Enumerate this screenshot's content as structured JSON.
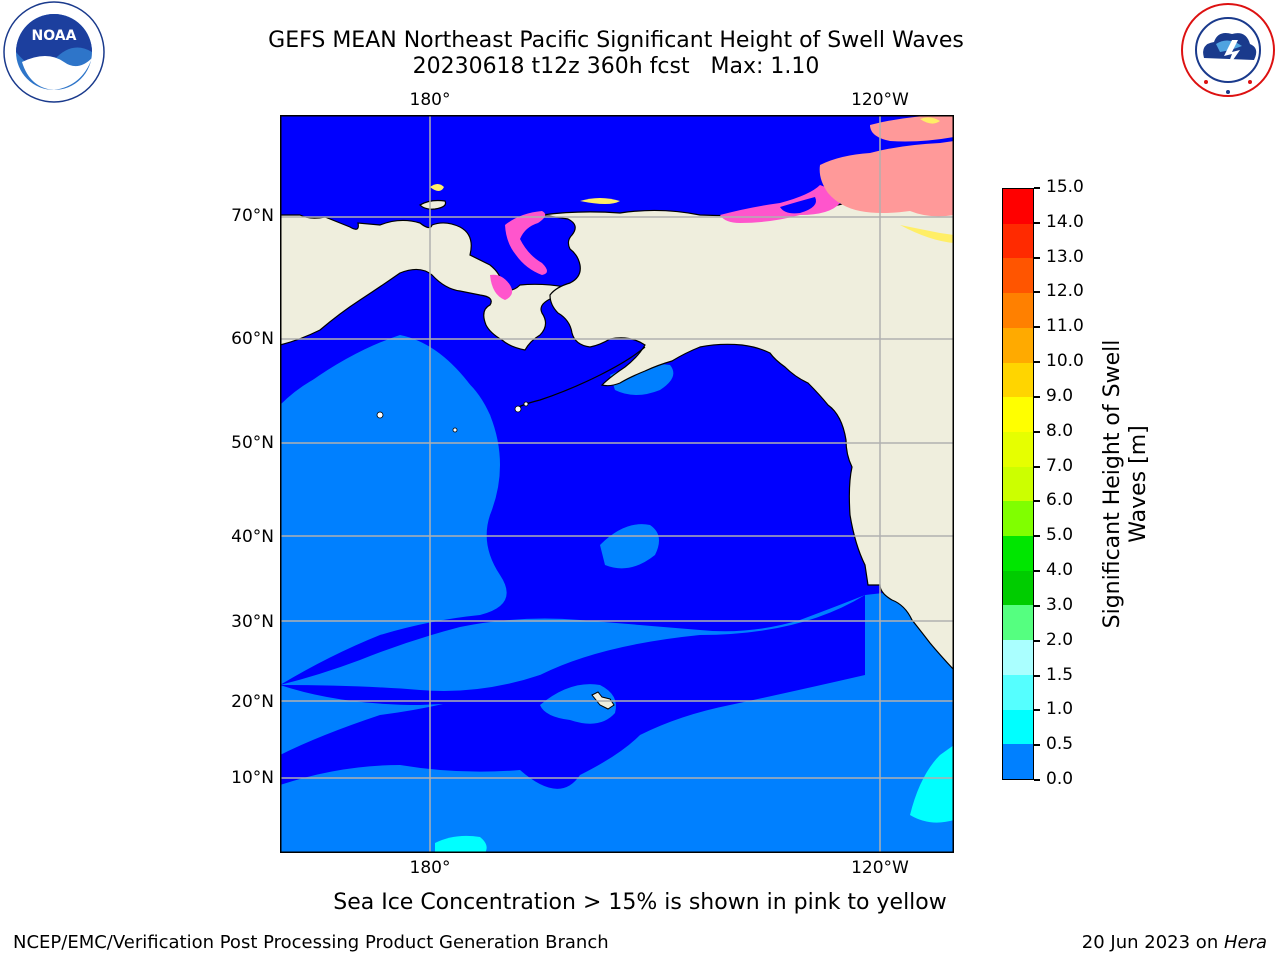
{
  "title": {
    "line1": "GEFS MEAN Northeast Pacific Significant Height of Swell Waves",
    "line2": "20230618 t12z 360h fcst   Max: 1.10"
  },
  "logos": {
    "noaa_text": "NOAA",
    "noaa_ring": "NATIONAL OCEANIC AND ATMOSPHERIC ADMINISTRATION · U.S. DEPARTMENT OF COMMERCE",
    "nws_ring": "NATIONAL WEATHER SERVICE"
  },
  "map": {
    "lon_labels_top": [
      "180°",
      "120°W"
    ],
    "lon_labels_bottom": [
      "180°",
      "120°W"
    ],
    "lat_labels": [
      "70°N",
      "60°N",
      "50°N",
      "40°N",
      "30°N",
      "20°N",
      "10°N"
    ],
    "colors": {
      "land": "#efeedd",
      "swell_0_05": "#0000ff",
      "swell_05_10": "#0080ff",
      "swell_10_15": "#00ffff",
      "ice_pink": "#ff55cc",
      "ice_salmon": "#ff9999",
      "ice_yellow": "#ffee66",
      "grid": "#b0b0b0"
    }
  },
  "colorbar": {
    "label_line1": "Significant Height of Swell",
    "label_line2": "Waves [m]",
    "ticks": [
      "15.0",
      "14.0",
      "13.0",
      "12.0",
      "11.0",
      "10.0",
      "9.0",
      "8.0",
      "7.0",
      "6.0",
      "5.0",
      "4.0",
      "3.0",
      "2.0",
      "1.5",
      "1.0",
      "0.5",
      "0.0"
    ],
    "colors": [
      "#ff0000",
      "#ff2a00",
      "#ff5500",
      "#ff8000",
      "#ffaa00",
      "#ffd500",
      "#ffff00",
      "#e6ff00",
      "#ccff00",
      "#80ff00",
      "#00e600",
      "#00cc00",
      "#55ff80",
      "#aaffff",
      "#55ffff",
      "#00ffff",
      "#0080ff",
      "#0000ff"
    ]
  },
  "caption": "Sea Ice Concentration > 15% is shown in pink to yellow",
  "footer": {
    "left": "NCEP/EMC/Verification Post Processing Product Generation Branch",
    "right_prefix": "20 Jun 2023 on ",
    "right_machine": "Hera"
  }
}
